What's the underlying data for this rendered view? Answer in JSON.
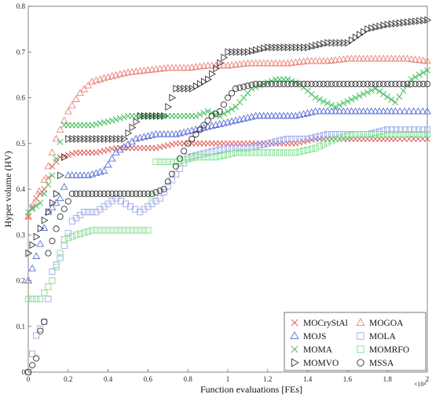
{
  "chart_data": {
    "type": "scatter",
    "title": "",
    "xlabel": "Function evaluations [FEs]",
    "ylabel": "Hyper volume (HV)",
    "xlim": [
      0,
      20000
    ],
    "ylim": [
      0,
      0.8
    ],
    "x_scale_note": "×10⁴",
    "x_ticks": [
      0,
      2000,
      4000,
      6000,
      8000,
      10000,
      12000,
      14000,
      16000,
      18000,
      20000
    ],
    "x_tick_labels": [
      "0",
      "0.2",
      "0.4",
      "0.6",
      "0.8",
      "1",
      "1.2",
      "1.4",
      "1.6",
      "1.8",
      "2"
    ],
    "y_ticks": [
      0,
      0.1,
      0.2,
      0.3,
      0.4,
      0.5,
      0.6,
      0.7,
      0.8
    ],
    "y_tick_labels": [
      "0",
      "0.1",
      "0.2",
      "0.3",
      "0.4",
      "0.5",
      "0.6",
      "0.7",
      "0.8"
    ],
    "grid": false,
    "legend_position": "bottom-right",
    "series": [
      {
        "name": "MOCryStAl",
        "marker": "x",
        "color": "#d9534f",
        "points": [
          [
            0,
            0.34
          ],
          [
            400,
            0.38
          ],
          [
            800,
            0.4
          ],
          [
            1200,
            0.45
          ],
          [
            1600,
            0.47
          ],
          [
            2400,
            0.48
          ],
          [
            3400,
            0.48
          ],
          [
            4400,
            0.49
          ],
          [
            5400,
            0.49
          ],
          [
            6400,
            0.49
          ],
          [
            7400,
            0.5
          ],
          [
            8400,
            0.5
          ],
          [
            9400,
            0.5
          ],
          [
            10400,
            0.5
          ],
          [
            11400,
            0.5
          ],
          [
            12400,
            0.5
          ],
          [
            13400,
            0.5
          ],
          [
            14400,
            0.51
          ],
          [
            15400,
            0.51
          ],
          [
            16400,
            0.51
          ],
          [
            17400,
            0.51
          ],
          [
            18400,
            0.51
          ],
          [
            20000,
            0.51
          ]
        ]
      },
      {
        "name": "MOGOA",
        "marker": "triangle-up",
        "color": "#e8837a",
        "points": [
          [
            0,
            0.34
          ],
          [
            300,
            0.37
          ],
          [
            800,
            0.42
          ],
          [
            1400,
            0.51
          ],
          [
            2000,
            0.57
          ],
          [
            2600,
            0.61
          ],
          [
            3200,
            0.635
          ],
          [
            4000,
            0.645
          ],
          [
            5000,
            0.655
          ],
          [
            6000,
            0.66
          ],
          [
            7000,
            0.665
          ],
          [
            8000,
            0.665
          ],
          [
            9000,
            0.67
          ],
          [
            10000,
            0.67
          ],
          [
            11000,
            0.675
          ],
          [
            12000,
            0.675
          ],
          [
            13000,
            0.675
          ],
          [
            14000,
            0.68
          ],
          [
            15000,
            0.68
          ],
          [
            16000,
            0.685
          ],
          [
            17000,
            0.685
          ],
          [
            18000,
            0.685
          ],
          [
            19000,
            0.685
          ],
          [
            20000,
            0.68
          ]
        ]
      },
      {
        "name": "MOJS",
        "marker": "triangle-up",
        "color": "#5b6fd6",
        "points": [
          [
            0,
            0.2
          ],
          [
            600,
            0.28
          ],
          [
            1000,
            0.35
          ],
          [
            1600,
            0.38
          ],
          [
            2000,
            0.43
          ],
          [
            3000,
            0.43
          ],
          [
            3800,
            0.44
          ],
          [
            4400,
            0.48
          ],
          [
            5400,
            0.51
          ],
          [
            6400,
            0.52
          ],
          [
            7400,
            0.52
          ],
          [
            8400,
            0.53
          ],
          [
            9400,
            0.54
          ],
          [
            10400,
            0.55
          ],
          [
            11400,
            0.56
          ],
          [
            12400,
            0.56
          ],
          [
            13400,
            0.56
          ],
          [
            14400,
            0.57
          ],
          [
            15400,
            0.57
          ],
          [
            16400,
            0.57
          ],
          [
            17400,
            0.57
          ],
          [
            18400,
            0.57
          ],
          [
            20000,
            0.57
          ]
        ]
      },
      {
        "name": "MOLA",
        "marker": "square",
        "color": "#9da8e8",
        "points": [
          [
            0,
            0.0
          ],
          [
            400,
            0.08
          ],
          [
            800,
            0.11
          ],
          [
            1000,
            0.16
          ],
          [
            1200,
            0.22
          ],
          [
            1600,
            0.25
          ],
          [
            2200,
            0.33
          ],
          [
            2800,
            0.35
          ],
          [
            3400,
            0.35
          ],
          [
            4400,
            0.38
          ],
          [
            5600,
            0.35
          ],
          [
            6600,
            0.38
          ],
          [
            7200,
            0.42
          ],
          [
            8000,
            0.47
          ],
          [
            9000,
            0.48
          ],
          [
            10000,
            0.49
          ],
          [
            11000,
            0.49
          ],
          [
            12000,
            0.5
          ],
          [
            13000,
            0.51
          ],
          [
            14000,
            0.51
          ],
          [
            15000,
            0.52
          ],
          [
            16000,
            0.52
          ],
          [
            17000,
            0.52
          ],
          [
            18000,
            0.53
          ],
          [
            20000,
            0.53
          ]
        ]
      },
      {
        "name": "MOMA",
        "marker": "x",
        "color": "#2db84a",
        "points": [
          [
            0,
            0.35
          ],
          [
            600,
            0.37
          ],
          [
            1200,
            0.43
          ],
          [
            1800,
            0.54
          ],
          [
            2400,
            0.54
          ],
          [
            3200,
            0.54
          ],
          [
            4200,
            0.55
          ],
          [
            5000,
            0.56
          ],
          [
            6000,
            0.56
          ],
          [
            6800,
            0.56
          ],
          [
            7600,
            0.56
          ],
          [
            8400,
            0.56
          ],
          [
            9000,
            0.57
          ],
          [
            9600,
            0.56
          ],
          [
            10400,
            0.58
          ],
          [
            11200,
            0.62
          ],
          [
            11800,
            0.63
          ],
          [
            12400,
            0.64
          ],
          [
            13000,
            0.64
          ],
          [
            13600,
            0.63
          ],
          [
            14400,
            0.6
          ],
          [
            15400,
            0.58
          ],
          [
            16400,
            0.6
          ],
          [
            17400,
            0.62
          ],
          [
            18400,
            0.59
          ],
          [
            19200,
            0.64
          ],
          [
            20000,
            0.66
          ]
        ]
      },
      {
        "name": "MOMRFO",
        "marker": "square",
        "color": "#7fe08e",
        "points": [
          [
            0,
            0.16
          ],
          [
            600,
            0.16
          ],
          [
            1200,
            0.2
          ],
          [
            1800,
            0.29
          ],
          [
            2400,
            0.3
          ],
          [
            3200,
            0.31
          ],
          [
            4200,
            0.31
          ],
          [
            5200,
            0.31
          ],
          [
            6000,
            0.31
          ],
          [
            6400,
            0.46
          ],
          [
            7400,
            0.46
          ],
          [
            8400,
            0.47
          ],
          [
            9400,
            0.47
          ],
          [
            10400,
            0.48
          ],
          [
            11400,
            0.48
          ],
          [
            12400,
            0.48
          ],
          [
            13400,
            0.48
          ],
          [
            14400,
            0.49
          ],
          [
            15400,
            0.51
          ],
          [
            16400,
            0.52
          ],
          [
            17400,
            0.52
          ],
          [
            18400,
            0.52
          ],
          [
            19400,
            0.52
          ],
          [
            20000,
            0.52
          ]
        ]
      },
      {
        "name": "MOMVO",
        "marker": "triangle-right",
        "color": "#333333",
        "points": [
          [
            0,
            0.26
          ],
          [
            1000,
            0.35
          ],
          [
            1400,
            0.39
          ],
          [
            2000,
            0.51
          ],
          [
            3000,
            0.51
          ],
          [
            4000,
            0.51
          ],
          [
            4800,
            0.51
          ],
          [
            5600,
            0.56
          ],
          [
            6400,
            0.56
          ],
          [
            6800,
            0.56
          ],
          [
            7400,
            0.62
          ],
          [
            8200,
            0.62
          ],
          [
            9000,
            0.64
          ],
          [
            10000,
            0.7
          ],
          [
            11000,
            0.7
          ],
          [
            12000,
            0.71
          ],
          [
            13000,
            0.71
          ],
          [
            14000,
            0.71
          ],
          [
            15000,
            0.72
          ],
          [
            16000,
            0.72
          ],
          [
            17000,
            0.75
          ],
          [
            18000,
            0.76
          ],
          [
            19000,
            0.765
          ],
          [
            20000,
            0.77
          ]
        ]
      },
      {
        "name": "MSSA",
        "marker": "circle",
        "color": "#333333",
        "points": [
          [
            0,
            0.0
          ],
          [
            400,
            0.03
          ],
          [
            600,
            0.09
          ],
          [
            800,
            0.11
          ],
          [
            1000,
            0.26
          ],
          [
            1600,
            0.34
          ],
          [
            2200,
            0.39
          ],
          [
            3200,
            0.39
          ],
          [
            4200,
            0.39
          ],
          [
            5200,
            0.39
          ],
          [
            6200,
            0.39
          ],
          [
            6800,
            0.4
          ],
          [
            7400,
            0.45
          ],
          [
            8000,
            0.5
          ],
          [
            8600,
            0.53
          ],
          [
            9200,
            0.56
          ],
          [
            9600,
            0.57
          ],
          [
            10000,
            0.6
          ],
          [
            10400,
            0.62
          ],
          [
            11400,
            0.63
          ],
          [
            12400,
            0.63
          ],
          [
            13400,
            0.63
          ],
          [
            14400,
            0.63
          ],
          [
            15400,
            0.63
          ],
          [
            16400,
            0.63
          ],
          [
            17400,
            0.63
          ],
          [
            18400,
            0.63
          ],
          [
            19400,
            0.63
          ],
          [
            20000,
            0.63
          ]
        ]
      }
    ]
  }
}
